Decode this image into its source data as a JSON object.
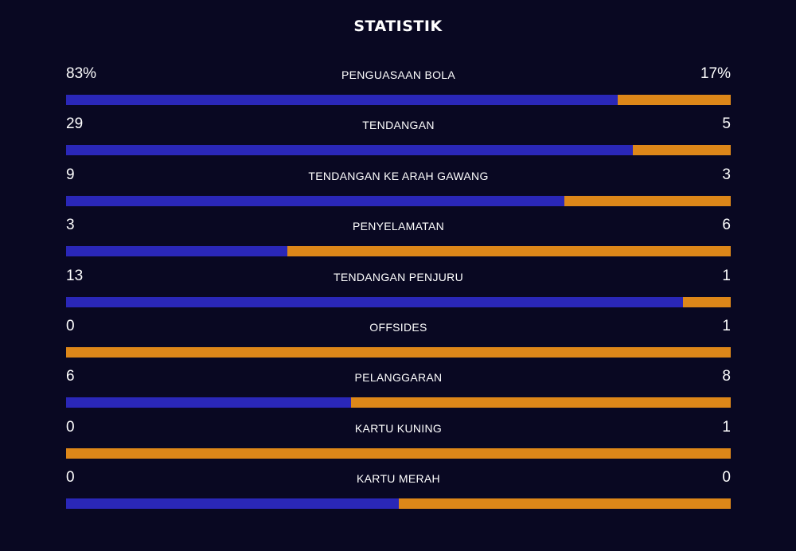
{
  "title": "STATISTIK",
  "colors": {
    "background": "#090822",
    "home": "#2a27b8",
    "away": "#dd8719",
    "text": "#ffffff"
  },
  "chart_data": {
    "type": "bar",
    "orientation": "horizontal-split",
    "title": "STATISTIK",
    "stats": [
      {
        "label": "PENGUASAAN BOLA",
        "home_display": "83%",
        "away_display": "17%",
        "home": 83,
        "away": 17
      },
      {
        "label": "TENDANGAN",
        "home_display": "29",
        "away_display": "5",
        "home": 29,
        "away": 5
      },
      {
        "label": "TENDANGAN KE ARAH GAWANG",
        "home_display": "9",
        "away_display": "3",
        "home": 9,
        "away": 3
      },
      {
        "label": "PENYELAMATAN",
        "home_display": "3",
        "away_display": "6",
        "home": 3,
        "away": 6
      },
      {
        "label": "TENDANGAN PENJURU",
        "home_display": "13",
        "away_display": "1",
        "home": 13,
        "away": 1
      },
      {
        "label": "OFFSIDES",
        "home_display": "0",
        "away_display": "1",
        "home": 0,
        "away": 1
      },
      {
        "label": "PELANGGARAN",
        "home_display": "6",
        "away_display": "8",
        "home": 6,
        "away": 8
      },
      {
        "label": "KARTU KUNING",
        "home_display": "0",
        "away_display": "1",
        "home": 0,
        "away": 1
      },
      {
        "label": "KARTU MERAH",
        "home_display": "0",
        "away_display": "0",
        "home": 0,
        "away": 0
      }
    ]
  }
}
